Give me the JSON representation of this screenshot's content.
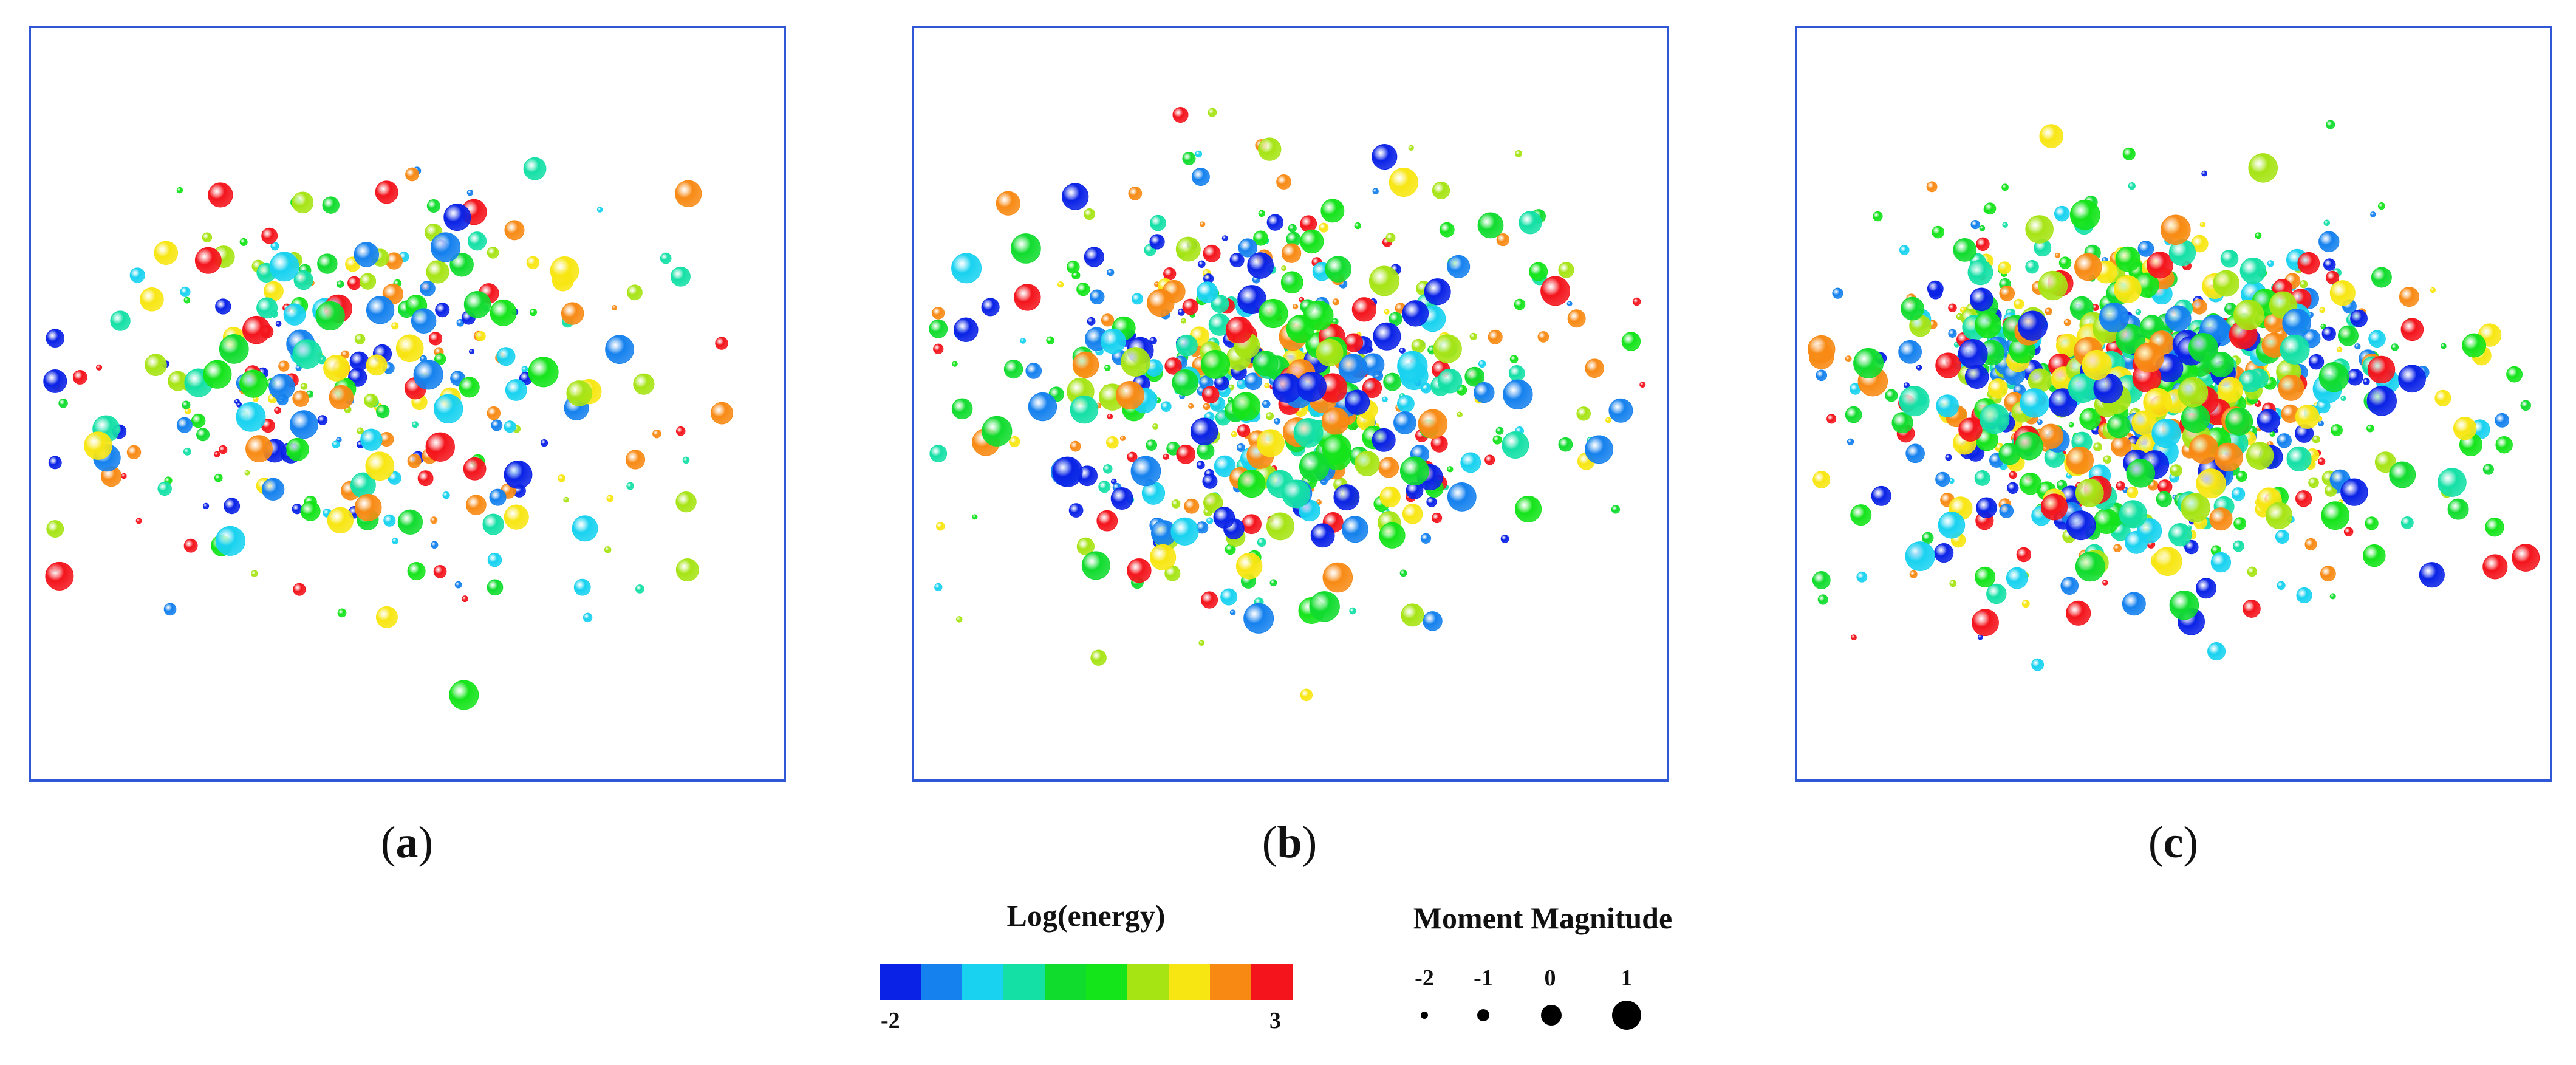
{
  "chart_data": [
    {
      "type": "scatter",
      "panel": "a",
      "caption": "a",
      "n_events": 300,
      "seed": 11,
      "spread_x": 0.18,
      "spread_y": 0.13
    },
    {
      "type": "scatter",
      "panel": "b",
      "caption": "b",
      "n_events": 560,
      "seed": 23,
      "spread_x": 0.17,
      "spread_y": 0.12
    },
    {
      "type": "scatter",
      "panel": "c",
      "caption": "c",
      "n_events": 820,
      "seed": 37,
      "spread_x": 0.18,
      "spread_y": 0.12
    }
  ],
  "color_legend": {
    "title": "Log(energy)",
    "min_label": "-2",
    "max_label": "3",
    "colors": [
      "#0a22e6",
      "#1581ee",
      "#18d2f0",
      "#14e0a6",
      "#10dc2e",
      "#14e41a",
      "#a6e414",
      "#f8e612",
      "#f88a14",
      "#f4141c"
    ]
  },
  "size_legend": {
    "title": "Moment Magnitude",
    "items": [
      {
        "label": "-2",
        "magnitude": -2
      },
      {
        "label": "-1",
        "magnitude": -1
      },
      {
        "label": "0",
        "magnitude": 0
      },
      {
        "label": "1",
        "magnitude": 1
      }
    ]
  }
}
